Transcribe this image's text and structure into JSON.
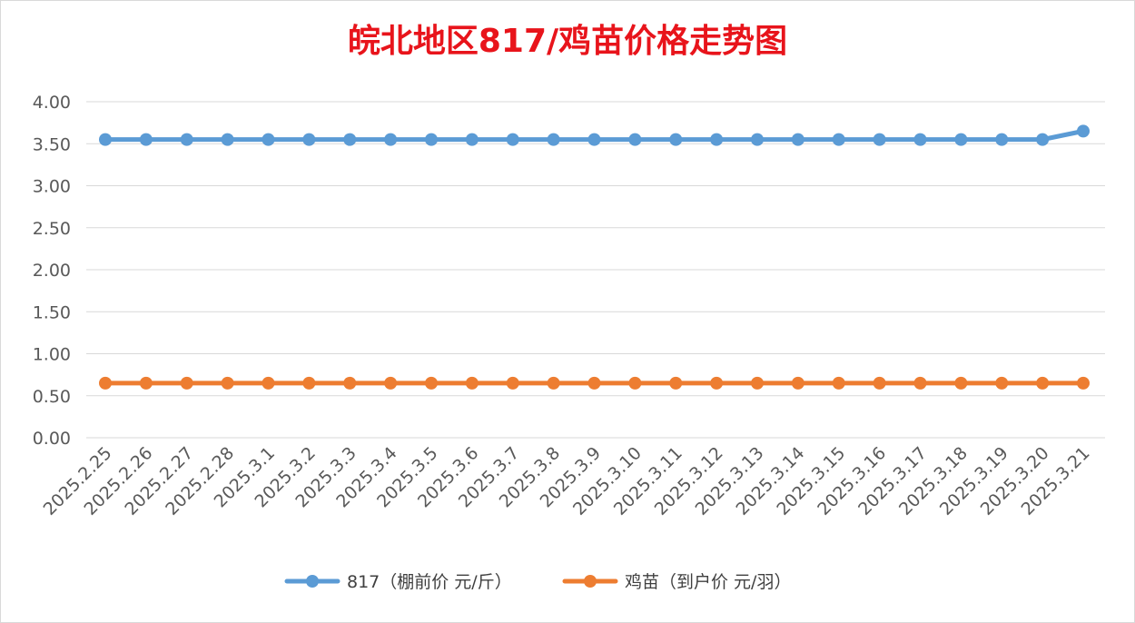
{
  "chart_data": {
    "type": "line",
    "title": "皖北地区817/鸡苗价格走势图",
    "xlabel": "",
    "ylabel": "",
    "ylim": [
      0,
      4.0
    ],
    "yticks": [
      "0.00",
      "0.50",
      "1.00",
      "1.50",
      "2.00",
      "2.50",
      "3.00",
      "3.50",
      "4.00"
    ],
    "grid": true,
    "legend_position": "bottom",
    "categories": [
      "2025.2.25",
      "2025.2.26",
      "2025.2.27",
      "2025.2.28",
      "2025.3.1",
      "2025.3.2",
      "2025.3.3",
      "2025.3.4",
      "2025.3.5",
      "2025.3.6",
      "2025.3.7",
      "2025.3.8",
      "2025.3.9",
      "2025.3.10",
      "2025.3.11",
      "2025.3.12",
      "2025.3.13",
      "2025.3.14",
      "2025.3.15",
      "2025.3.16",
      "2025.3.17",
      "2025.3.18",
      "2025.3.19",
      "2025.3.20",
      "2025.3.21"
    ],
    "series": [
      {
        "name": "817（棚前价 元/斤）",
        "color": "#5b9bd5",
        "values": [
          3.55,
          3.55,
          3.55,
          3.55,
          3.55,
          3.55,
          3.55,
          3.55,
          3.55,
          3.55,
          3.55,
          3.55,
          3.55,
          3.55,
          3.55,
          3.55,
          3.55,
          3.55,
          3.55,
          3.55,
          3.55,
          3.55,
          3.55,
          3.55,
          3.65
        ]
      },
      {
        "name": "鸡苗（到户价 元/羽）",
        "color": "#ed7d31",
        "values": [
          0.65,
          0.65,
          0.65,
          0.65,
          0.65,
          0.65,
          0.65,
          0.65,
          0.65,
          0.65,
          0.65,
          0.65,
          0.65,
          0.65,
          0.65,
          0.65,
          0.65,
          0.65,
          0.65,
          0.65,
          0.65,
          0.65,
          0.65,
          0.65,
          0.65
        ]
      }
    ]
  }
}
